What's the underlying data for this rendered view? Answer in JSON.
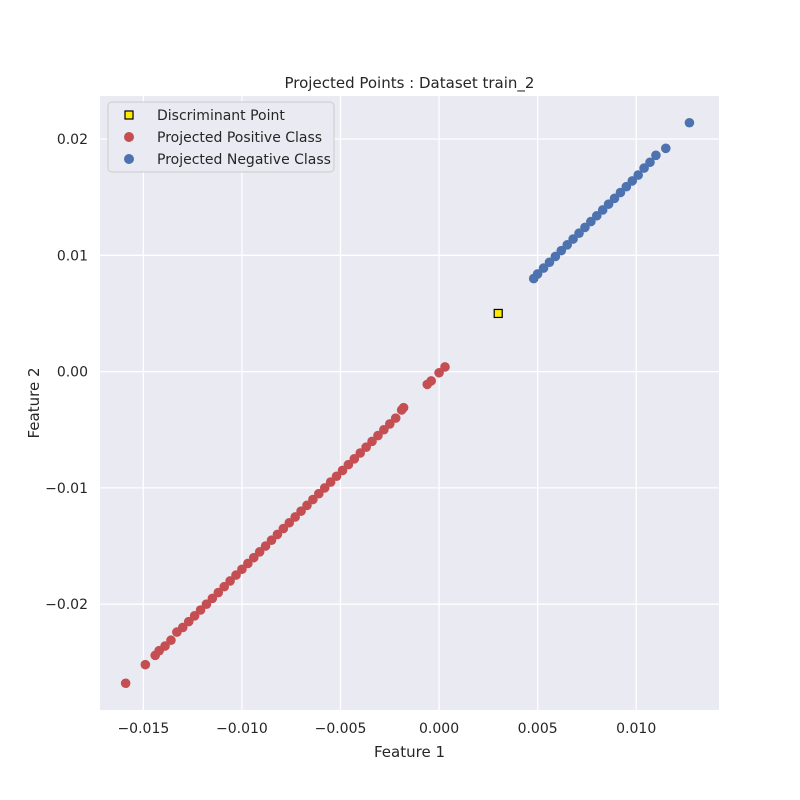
{
  "chart_data": {
    "type": "scatter",
    "title": "Projected Points : Dataset train_2",
    "xlabel": "Feature 1",
    "ylabel": "Feature 2",
    "xlim": [
      -0.0172,
      0.0142
    ],
    "ylim": [
      -0.0291,
      0.0237
    ],
    "xticks": [
      -0.015,
      -0.01,
      -0.005,
      0.0,
      0.005,
      0.01
    ],
    "xtick_labels": [
      "−0.015",
      "−0.010",
      "−0.005",
      "0.000",
      "0.005",
      "0.010"
    ],
    "yticks": [
      -0.02,
      -0.01,
      0.0,
      0.01,
      0.02
    ],
    "ytick_labels": [
      "−0.02",
      "−0.01",
      "0.00",
      "0.01",
      "0.02"
    ],
    "grid": true,
    "legend_position": "top-left",
    "background": "#eaeaf2",
    "series": [
      {
        "name": "Discriminant Point",
        "marker": "square",
        "color": "#ffeb00",
        "edgecolor": "#000000",
        "points": [
          [
            0.003,
            0.005
          ]
        ]
      },
      {
        "name": "Projected Positive Class",
        "marker": "circle",
        "color": "#c44e52",
        "points": [
          [
            -0.0159,
            -0.0268
          ],
          [
            -0.0149,
            -0.0252
          ],
          [
            -0.0144,
            -0.0244
          ],
          [
            -0.0142,
            -0.024
          ],
          [
            -0.0139,
            -0.0236
          ],
          [
            -0.0136,
            -0.0231
          ],
          [
            -0.0133,
            -0.0224
          ],
          [
            -0.013,
            -0.022
          ],
          [
            -0.0127,
            -0.0215
          ],
          [
            -0.0124,
            -0.021
          ],
          [
            -0.0121,
            -0.0205
          ],
          [
            -0.0118,
            -0.02
          ],
          [
            -0.0115,
            -0.0195
          ],
          [
            -0.0112,
            -0.019
          ],
          [
            -0.0109,
            -0.0185
          ],
          [
            -0.0106,
            -0.018
          ],
          [
            -0.0103,
            -0.0175
          ],
          [
            -0.01,
            -0.017
          ],
          [
            -0.0097,
            -0.0165
          ],
          [
            -0.0094,
            -0.016
          ],
          [
            -0.0091,
            -0.0155
          ],
          [
            -0.0088,
            -0.015
          ],
          [
            -0.0085,
            -0.0145
          ],
          [
            -0.0082,
            -0.014
          ],
          [
            -0.0079,
            -0.0135
          ],
          [
            -0.0076,
            -0.013
          ],
          [
            -0.0073,
            -0.0125
          ],
          [
            -0.007,
            -0.012
          ],
          [
            -0.0067,
            -0.0115
          ],
          [
            -0.0064,
            -0.011
          ],
          [
            -0.0061,
            -0.0105
          ],
          [
            -0.0058,
            -0.01
          ],
          [
            -0.0055,
            -0.0095
          ],
          [
            -0.0052,
            -0.009
          ],
          [
            -0.0049,
            -0.0085
          ],
          [
            -0.0046,
            -0.008
          ],
          [
            -0.0043,
            -0.0075
          ],
          [
            -0.004,
            -0.007
          ],
          [
            -0.0037,
            -0.0065
          ],
          [
            -0.0034,
            -0.006
          ],
          [
            -0.0031,
            -0.0055
          ],
          [
            -0.0028,
            -0.005
          ],
          [
            -0.0025,
            -0.0045
          ],
          [
            -0.0022,
            -0.004
          ],
          [
            -0.0019,
            -0.0033
          ],
          [
            -0.0018,
            -0.0031
          ],
          [
            -0.0006,
            -0.0011
          ],
          [
            -0.0004,
            -0.0008
          ],
          [
            0.0,
            -0.0001
          ],
          [
            0.0003,
            0.0004
          ]
        ]
      },
      {
        "name": "Projected Negative Class",
        "marker": "circle",
        "color": "#4c72b0",
        "points": [
          [
            0.0048,
            0.008
          ],
          [
            0.005,
            0.0084
          ],
          [
            0.0053,
            0.0089
          ],
          [
            0.0056,
            0.0094
          ],
          [
            0.0059,
            0.0099
          ],
          [
            0.0062,
            0.0104
          ],
          [
            0.0065,
            0.0109
          ],
          [
            0.0068,
            0.0114
          ],
          [
            0.0071,
            0.0119
          ],
          [
            0.0074,
            0.0124
          ],
          [
            0.0077,
            0.0129
          ],
          [
            0.008,
            0.0134
          ],
          [
            0.0083,
            0.0139
          ],
          [
            0.0086,
            0.0144
          ],
          [
            0.0089,
            0.0149
          ],
          [
            0.0092,
            0.0154
          ],
          [
            0.0095,
            0.0159
          ],
          [
            0.0098,
            0.0164
          ],
          [
            0.0101,
            0.0169
          ],
          [
            0.0104,
            0.0175
          ],
          [
            0.0107,
            0.018
          ],
          [
            0.011,
            0.0186
          ],
          [
            0.0115,
            0.0192
          ],
          [
            0.0127,
            0.0214
          ]
        ]
      }
    ]
  }
}
